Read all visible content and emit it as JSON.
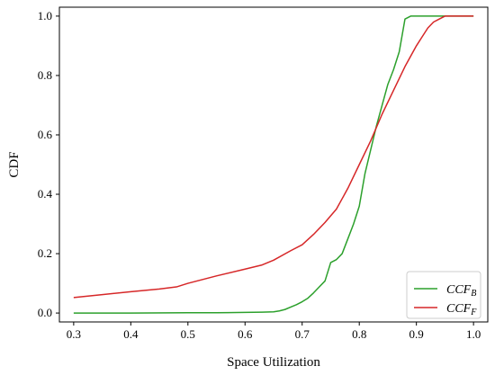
{
  "chart_data": {
    "type": "line",
    "title": "",
    "xlabel": "Space Utilization",
    "ylabel": "CDF",
    "xlim": [
      0.275,
      1.025
    ],
    "ylim": [
      -0.03,
      1.03
    ],
    "xticks": [
      "0.3",
      "0.4",
      "0.5",
      "0.6",
      "0.7",
      "0.8",
      "0.9",
      "1.0"
    ],
    "yticks": [
      "0.0",
      "0.2",
      "0.4",
      "0.6",
      "0.8",
      "1.0"
    ],
    "grid": false,
    "legend_position": "lower-right",
    "series": [
      {
        "name": "CCF",
        "subscript": "B",
        "color": "#2ca02c",
        "x": [
          0.3,
          0.4,
          0.5,
          0.55,
          0.6,
          0.63,
          0.65,
          0.66,
          0.67,
          0.68,
          0.69,
          0.7,
          0.71,
          0.72,
          0.73,
          0.74,
          0.75,
          0.76,
          0.77,
          0.78,
          0.79,
          0.8,
          0.81,
          0.82,
          0.83,
          0.84,
          0.85,
          0.86,
          0.87,
          0.88,
          0.89,
          0.9,
          0.92,
          0.95,
          1.0
        ],
        "y": [
          0.0,
          0.0,
          0.001,
          0.001,
          0.002,
          0.003,
          0.004,
          0.007,
          0.012,
          0.02,
          0.028,
          0.038,
          0.05,
          0.068,
          0.088,
          0.108,
          0.17,
          0.18,
          0.2,
          0.25,
          0.3,
          0.36,
          0.47,
          0.55,
          0.63,
          0.7,
          0.77,
          0.82,
          0.88,
          0.99,
          1.0,
          1.0,
          1.0,
          1.0,
          1.0
        ]
      },
      {
        "name": "CCF",
        "subscript": "F",
        "color": "#d62728",
        "x": [
          0.3,
          0.35,
          0.4,
          0.45,
          0.48,
          0.5,
          0.55,
          0.6,
          0.63,
          0.65,
          0.68,
          0.7,
          0.72,
          0.74,
          0.76,
          0.78,
          0.8,
          0.82,
          0.84,
          0.86,
          0.88,
          0.9,
          0.91,
          0.92,
          0.93,
          0.94,
          0.95,
          0.96,
          1.0
        ],
        "y": [
          0.052,
          0.062,
          0.072,
          0.081,
          0.088,
          0.1,
          0.125,
          0.148,
          0.162,
          0.178,
          0.21,
          0.23,
          0.265,
          0.305,
          0.35,
          0.42,
          0.5,
          0.58,
          0.67,
          0.75,
          0.83,
          0.9,
          0.93,
          0.96,
          0.98,
          0.99,
          1.0,
          1.0,
          1.0
        ]
      }
    ]
  }
}
